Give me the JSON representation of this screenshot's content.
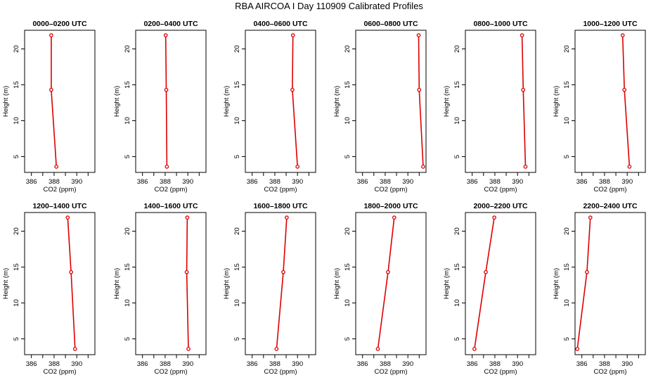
{
  "page_title": "RBA AIRCOA I  Day 110909  Calibrated Profiles",
  "chart_data": [
    {
      "type": "line",
      "title": "0000–0200 UTC",
      "xlabel": "CO2 (ppm)",
      "ylabel": "Height (m)",
      "xlim": [
        385.4,
        391.6
      ],
      "ylim": [
        2.8,
        22.6
      ],
      "xticks": [
        386,
        388,
        390
      ],
      "yticks": [
        5,
        10,
        15,
        20
      ],
      "grid": false,
      "x": [
        388.2,
        387.75,
        387.75
      ],
      "y": [
        3.6,
        14.3,
        21.9
      ],
      "color": "#dd0000"
    },
    {
      "type": "line",
      "title": "0200–0400 UTC",
      "xlabel": "CO2 (ppm)",
      "ylabel": "Height (m)",
      "xlim": [
        385.4,
        391.6
      ],
      "ylim": [
        2.8,
        22.6
      ],
      "xticks": [
        386,
        388,
        390
      ],
      "yticks": [
        5,
        10,
        15,
        20
      ],
      "grid": false,
      "x": [
        388.15,
        388.1,
        388.05
      ],
      "y": [
        3.6,
        14.3,
        21.9
      ],
      "color": "#dd0000"
    },
    {
      "type": "line",
      "title": "0400–0600 UTC",
      "xlabel": "CO2 (ppm)",
      "ylabel": "Height (m)",
      "xlim": [
        385.4,
        391.6
      ],
      "ylim": [
        2.8,
        22.6
      ],
      "xticks": [
        386,
        388,
        390
      ],
      "yticks": [
        5,
        10,
        15,
        20
      ],
      "grid": false,
      "x": [
        390.0,
        389.55,
        389.6
      ],
      "y": [
        3.6,
        14.3,
        21.9
      ],
      "color": "#dd0000"
    },
    {
      "type": "line",
      "title": "0600–0800 UTC",
      "xlabel": "CO2 (ppm)",
      "ylabel": "Height (m)",
      "xlim": [
        385.4,
        391.6
      ],
      "ylim": [
        2.8,
        22.6
      ],
      "xticks": [
        386,
        388,
        390
      ],
      "yticks": [
        5,
        10,
        15,
        20
      ],
      "grid": false,
      "x": [
        391.35,
        391.0,
        390.95
      ],
      "y": [
        3.6,
        14.3,
        21.9
      ],
      "color": "#dd0000"
    },
    {
      "type": "line",
      "title": "0800–1000 UTC",
      "xlabel": "CO2 (ppm)",
      "ylabel": "Height (m)",
      "xlim": [
        385.4,
        391.6
      ],
      "ylim": [
        2.8,
        22.6
      ],
      "xticks": [
        386,
        388,
        390
      ],
      "yticks": [
        5,
        10,
        15,
        20
      ],
      "grid": false,
      "x": [
        390.7,
        390.5,
        390.4
      ],
      "y": [
        3.6,
        14.3,
        21.9
      ],
      "color": "#dd0000"
    },
    {
      "type": "line",
      "title": "1000–1200 UTC",
      "xlabel": "CO2 (ppm)",
      "ylabel": "Height (m)",
      "xlim": [
        385.4,
        391.6
      ],
      "ylim": [
        2.8,
        22.6
      ],
      "xticks": [
        386,
        388,
        390
      ],
      "yticks": [
        5,
        10,
        15,
        20
      ],
      "grid": false,
      "x": [
        390.2,
        389.75,
        389.6
      ],
      "y": [
        3.6,
        14.3,
        21.9
      ],
      "color": "#dd0000"
    },
    {
      "type": "line",
      "title": "1200–1400 UTC",
      "xlabel": "CO2 (ppm)",
      "ylabel": "Height (m)",
      "xlim": [
        385.4,
        391.6
      ],
      "ylim": [
        2.8,
        22.6
      ],
      "xticks": [
        386,
        388,
        390
      ],
      "yticks": [
        5,
        10,
        15,
        20
      ],
      "grid": false,
      "x": [
        389.85,
        389.5,
        389.2
      ],
      "y": [
        3.6,
        14.3,
        21.9
      ],
      "color": "#dd0000"
    },
    {
      "type": "line",
      "title": "1400–1600 UTC",
      "xlabel": "CO2 (ppm)",
      "ylabel": "Height (m)",
      "xlim": [
        385.4,
        391.6
      ],
      "ylim": [
        2.8,
        22.6
      ],
      "xticks": [
        386,
        388,
        390
      ],
      "yticks": [
        5,
        10,
        15,
        20
      ],
      "grid": false,
      "x": [
        390.05,
        389.9,
        389.95
      ],
      "y": [
        3.6,
        14.3,
        21.9
      ],
      "color": "#dd0000"
    },
    {
      "type": "line",
      "title": "1600–1800 UTC",
      "xlabel": "CO2 (ppm)",
      "ylabel": "Height (m)",
      "xlim": [
        385.4,
        391.6
      ],
      "ylim": [
        2.8,
        22.6
      ],
      "xticks": [
        386,
        388,
        390
      ],
      "yticks": [
        5,
        10,
        15,
        20
      ],
      "grid": false,
      "x": [
        388.15,
        388.75,
        389.05
      ],
      "y": [
        3.6,
        14.3,
        21.9
      ],
      "color": "#dd0000"
    },
    {
      "type": "line",
      "title": "1800–2000 UTC",
      "xlabel": "CO2 (ppm)",
      "ylabel": "Height (m)",
      "xlim": [
        385.4,
        391.6
      ],
      "ylim": [
        2.8,
        22.6
      ],
      "xticks": [
        386,
        388,
        390
      ],
      "yticks": [
        5,
        10,
        15,
        20
      ],
      "grid": false,
      "x": [
        387.35,
        388.25,
        388.8
      ],
      "y": [
        3.6,
        14.3,
        21.9
      ],
      "color": "#dd0000"
    },
    {
      "type": "line",
      "title": "2000–2200 UTC",
      "xlabel": "CO2 (ppm)",
      "ylabel": "Height (m)",
      "xlim": [
        385.4,
        391.6
      ],
      "ylim": [
        2.8,
        22.6
      ],
      "xticks": [
        386,
        388,
        390
      ],
      "yticks": [
        5,
        10,
        15,
        20
      ],
      "grid": false,
      "x": [
        386.2,
        387.2,
        387.95
      ],
      "y": [
        3.6,
        14.3,
        21.9
      ],
      "color": "#dd0000"
    },
    {
      "type": "line",
      "title": "2200–2400 UTC",
      "xlabel": "CO2 (ppm)",
      "ylabel": "Height (m)",
      "xlim": [
        385.4,
        391.6
      ],
      "ylim": [
        2.8,
        22.6
      ],
      "xticks": [
        386,
        388,
        390
      ],
      "yticks": [
        5,
        10,
        15,
        20
      ],
      "grid": false,
      "x": [
        385.6,
        386.45,
        386.75
      ],
      "y": [
        3.6,
        14.3,
        21.9
      ],
      "color": "#dd0000"
    }
  ]
}
